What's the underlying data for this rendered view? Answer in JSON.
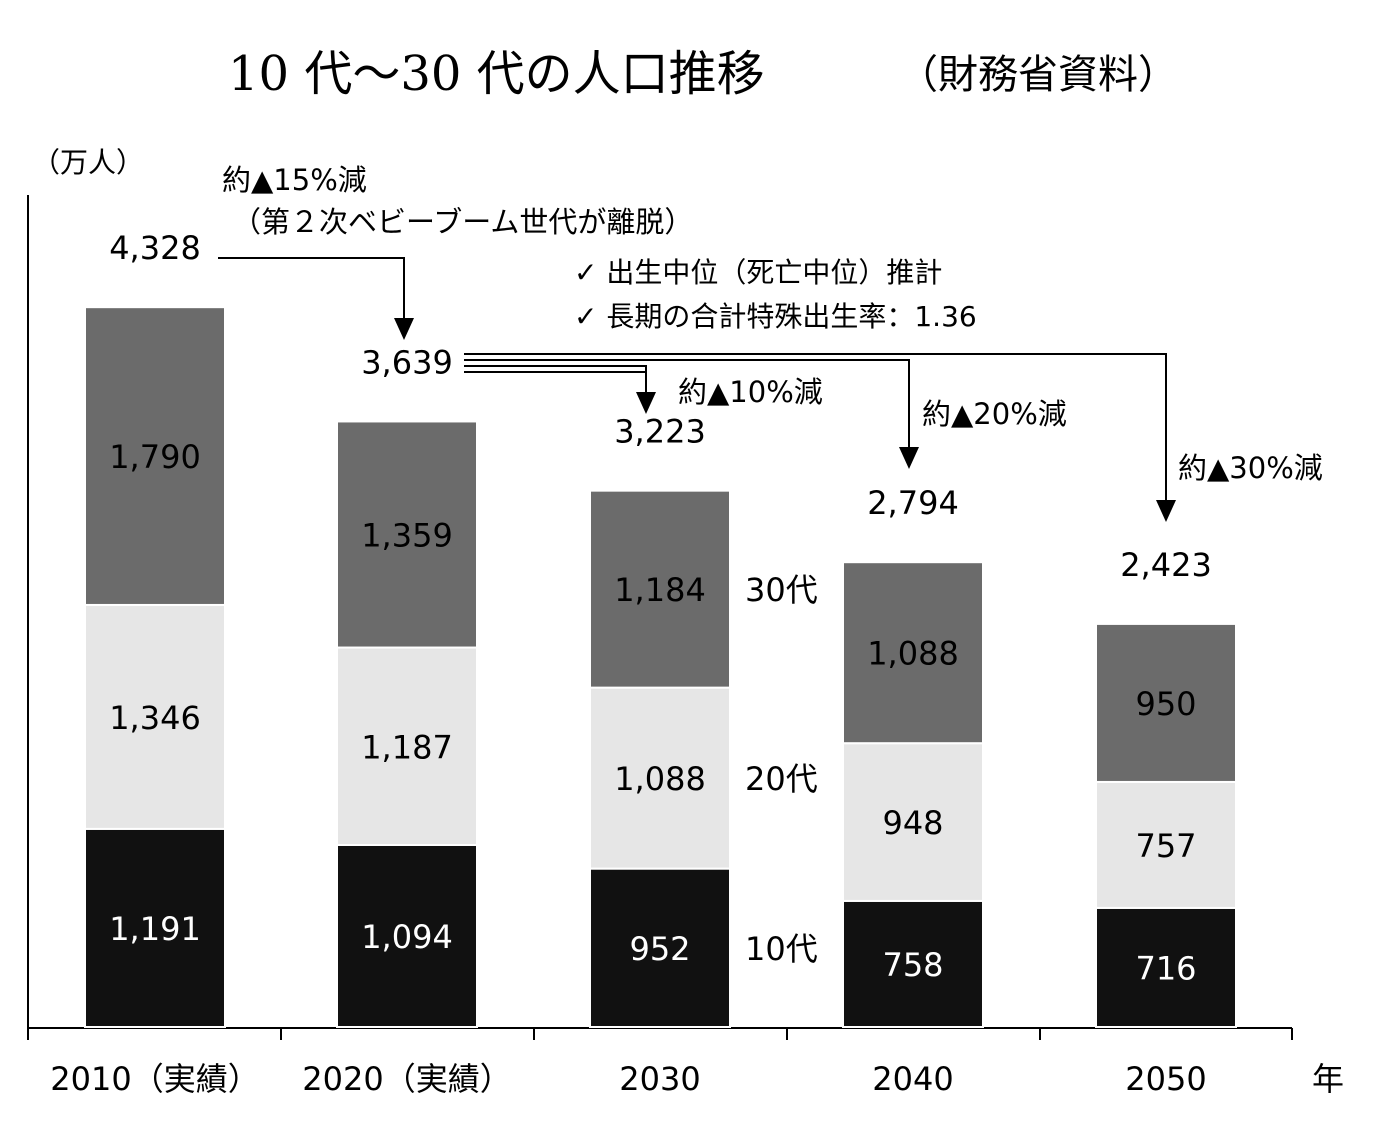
{
  "title": "10 代～30 代の人口推移",
  "title_source": "（財務省資料）",
  "unit_label": "（万人）",
  "x_axis_suffix": "年",
  "notes": [
    "✓ 出生中位（死亡中位）推計",
    "✓ 長期の合計特殊出生率：1.36"
  ],
  "annotations": {
    "a2020": "約▲15%減",
    "a2020_sub": "（第２次ベビーブーム世代が離脱）",
    "a2030": "約▲10%減",
    "a2040": "約▲20%減",
    "a2050": "約▲30%減"
  },
  "colors": {
    "teens": "#111111",
    "twenties": "#e6e6e6",
    "thirties": "#6b6b6b"
  },
  "chart_data": {
    "type": "bar",
    "stacked": true,
    "categories": [
      "2010（実績）",
      "2020（実績）",
      "2030",
      "2040",
      "2050"
    ],
    "series": [
      {
        "name": "10代",
        "values": [
          1191,
          1094,
          952,
          758,
          716
        ]
      },
      {
        "name": "20代",
        "values": [
          1346,
          1187,
          1088,
          948,
          757
        ]
      },
      {
        "name": "30代",
        "values": [
          1790,
          1359,
          1184,
          1088,
          950
        ]
      }
    ],
    "totals": [
      4328,
      3639,
      3223,
      2794,
      2423
    ],
    "value_labels": [
      [
        "1,191",
        "1,094",
        "952",
        "758",
        "716"
      ],
      [
        "1,346",
        "1,187",
        "1,088",
        "948",
        "757"
      ],
      [
        "1,790",
        "1,359",
        "1,184",
        "1,088",
        "950"
      ]
    ],
    "total_labels": [
      "4,328",
      "3,639",
      "3,223",
      "2,794",
      "2,423"
    ],
    "ylim": [
      0,
      4328
    ],
    "grid": false,
    "legend": "inline-right-of-2030"
  }
}
